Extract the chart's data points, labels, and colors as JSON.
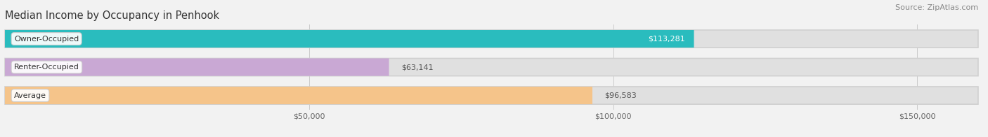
{
  "title": "Median Income by Occupancy in Penhook",
  "source": "Source: ZipAtlas.com",
  "categories": [
    "Owner-Occupied",
    "Renter-Occupied",
    "Average"
  ],
  "values": [
    113281,
    63141,
    96583
  ],
  "labels": [
    "$113,281",
    "$63,141",
    "$96,583"
  ],
  "bar_colors": [
    "#2abcbe",
    "#c9a8d4",
    "#f5c48a"
  ],
  "xlim": [
    0,
    160000
  ],
  "xticks": [
    50000,
    100000,
    150000
  ],
  "xticklabels": [
    "$50,000",
    "$100,000",
    "$150,000"
  ],
  "title_fontsize": 10.5,
  "source_fontsize": 8,
  "value_label_fontsize": 8,
  "category_fontsize": 8,
  "bar_height": 0.62,
  "background_color": "#f2f2f2",
  "bar_bg_color": "#e0e0e0",
  "label_inside_bar": [
    true,
    false,
    false
  ],
  "label_text_color_inside": "#ffffff",
  "label_text_color_outside": "#555555"
}
